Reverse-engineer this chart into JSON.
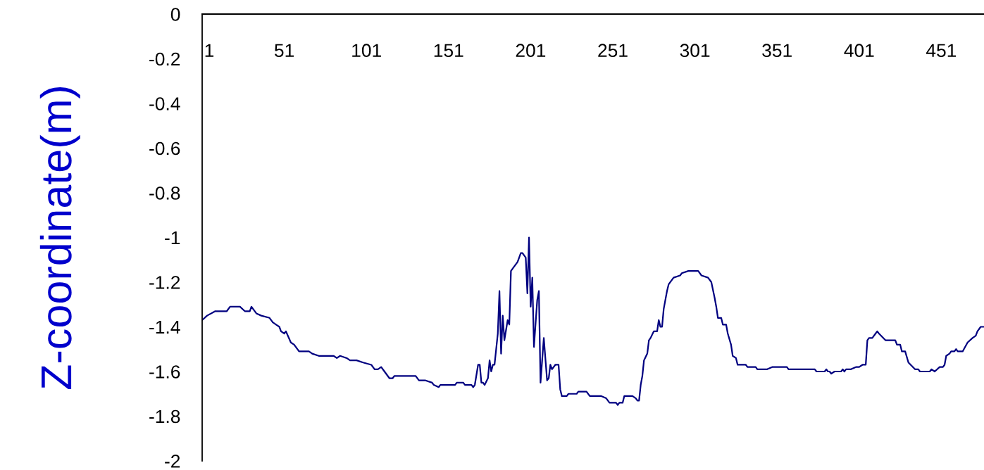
{
  "chart_data": {
    "type": "line",
    "ylabel": "Z-coordinate(m)",
    "x": [
      1,
      4,
      9,
      16,
      18,
      24,
      27,
      30,
      31,
      34,
      37,
      42,
      44,
      46,
      48,
      49,
      51,
      52,
      55,
      57,
      60,
      66,
      68,
      72,
      81,
      83,
      85,
      89,
      91,
      95,
      99,
      104,
      106,
      108,
      110,
      112,
      115,
      117,
      118,
      131,
      133,
      137,
      141,
      142,
      145,
      146,
      155,
      156,
      160,
      161,
      165,
      166,
      167,
      169,
      170,
      171,
      172,
      173,
      175,
      176,
      177,
      178,
      179,
      180,
      181,
      182,
      183,
      184,
      185,
      187,
      188,
      189,
      190,
      193,
      194,
      195,
      196,
      197,
      198,
      199,
      200,
      201,
      202,
      203,
      205,
      206,
      207,
      209,
      211,
      212,
      213,
      214,
      216,
      218,
      219,
      220,
      223,
      224,
      229,
      230,
      235,
      237,
      244,
      247,
      249,
      253,
      254,
      255,
      257,
      258,
      263,
      265,
      266,
      267,
      268,
      269,
      270,
      272,
      273,
      274,
      276,
      278,
      279,
      280,
      281,
      282,
      284,
      285,
      288,
      292,
      293,
      297,
      303,
      305,
      309,
      311,
      313,
      314,
      315,
      317,
      318,
      320,
      321,
      323,
      324,
      326,
      327,
      332,
      333,
      338,
      339,
      345,
      348,
      357,
      358,
      374,
      375,
      380,
      381,
      382,
      383,
      384,
      386,
      387,
      390,
      391,
      392,
      393,
      396,
      399,
      400,
      401,
      403,
      405,
      406,
      407,
      409,
      411,
      412,
      413,
      417,
      423,
      424,
      426,
      427,
      429,
      431,
      435,
      437,
      438,
      444,
      445,
      447,
      450,
      452,
      453,
      454,
      456,
      457,
      459,
      460,
      461,
      464,
      467,
      470,
      472,
      473,
      475,
      477
    ],
    "series": [
      {
        "color": "#000080",
        "values": [
          -1.37,
          -1.35,
          -1.33,
          -1.33,
          -1.31,
          -1.31,
          -1.33,
          -1.33,
          -1.31,
          -1.34,
          -1.35,
          -1.36,
          -1.38,
          -1.39,
          -1.4,
          -1.42,
          -1.43,
          -1.42,
          -1.47,
          -1.48,
          -1.51,
          -1.51,
          -1.52,
          -1.53,
          -1.53,
          -1.54,
          -1.53,
          -1.54,
          -1.55,
          -1.55,
          -1.56,
          -1.57,
          -1.59,
          -1.59,
          -1.58,
          -1.6,
          -1.63,
          -1.63,
          -1.62,
          -1.62,
          -1.64,
          -1.64,
          -1.65,
          -1.66,
          -1.67,
          -1.66,
          -1.66,
          -1.65,
          -1.65,
          -1.66,
          -1.66,
          -1.67,
          -1.66,
          -1.57,
          -1.57,
          -1.65,
          -1.65,
          -1.66,
          -1.63,
          -1.55,
          -1.6,
          -1.57,
          -1.57,
          -1.5,
          -1.43,
          -1.24,
          -1.52,
          -1.35,
          -1.46,
          -1.37,
          -1.39,
          -1.15,
          -1.14,
          -1.11,
          -1.09,
          -1.07,
          -1.07,
          -1.08,
          -1.09,
          -1.25,
          -1.0,
          -1.31,
          -1.18,
          -1.49,
          -1.28,
          -1.24,
          -1.65,
          -1.45,
          -1.64,
          -1.63,
          -1.57,
          -1.59,
          -1.57,
          -1.57,
          -1.68,
          -1.71,
          -1.71,
          -1.7,
          -1.7,
          -1.69,
          -1.69,
          -1.71,
          -1.71,
          -1.72,
          -1.74,
          -1.74,
          -1.75,
          -1.74,
          -1.74,
          -1.71,
          -1.71,
          -1.72,
          -1.73,
          -1.73,
          -1.66,
          -1.62,
          -1.55,
          -1.52,
          -1.46,
          -1.45,
          -1.42,
          -1.42,
          -1.37,
          -1.4,
          -1.4,
          -1.32,
          -1.24,
          -1.21,
          -1.18,
          -1.17,
          -1.16,
          -1.15,
          -1.15,
          -1.17,
          -1.18,
          -1.2,
          -1.27,
          -1.31,
          -1.36,
          -1.36,
          -1.39,
          -1.39,
          -1.43,
          -1.48,
          -1.53,
          -1.54,
          -1.57,
          -1.57,
          -1.58,
          -1.58,
          -1.59,
          -1.59,
          -1.58,
          -1.58,
          -1.59,
          -1.59,
          -1.6,
          -1.6,
          -1.59,
          -1.6,
          -1.6,
          -1.61,
          -1.6,
          -1.6,
          -1.6,
          -1.59,
          -1.6,
          -1.59,
          -1.59,
          -1.58,
          -1.58,
          -1.58,
          -1.57,
          -1.57,
          -1.46,
          -1.45,
          -1.45,
          -1.43,
          -1.42,
          -1.43,
          -1.46,
          -1.46,
          -1.48,
          -1.48,
          -1.51,
          -1.51,
          -1.56,
          -1.59,
          -1.59,
          -1.6,
          -1.6,
          -1.59,
          -1.6,
          -1.58,
          -1.58,
          -1.57,
          -1.53,
          -1.52,
          -1.51,
          -1.51,
          -1.5,
          -1.51,
          -1.51,
          -1.47,
          -1.45,
          -1.44,
          -1.42,
          -1.4,
          -1.4
        ]
      }
    ],
    "xlim": [
      1,
      477
    ],
    "ylim": [
      -2,
      0
    ],
    "xticks": [
      1,
      51,
      101,
      151,
      201,
      251,
      301,
      351,
      401,
      451
    ],
    "yticks": [
      0,
      -0.2,
      -0.4,
      -0.6,
      -0.8,
      -1,
      -1.2,
      -1.4,
      -1.6,
      -1.8,
      -2
    ],
    "grid": false,
    "legend": false
  }
}
